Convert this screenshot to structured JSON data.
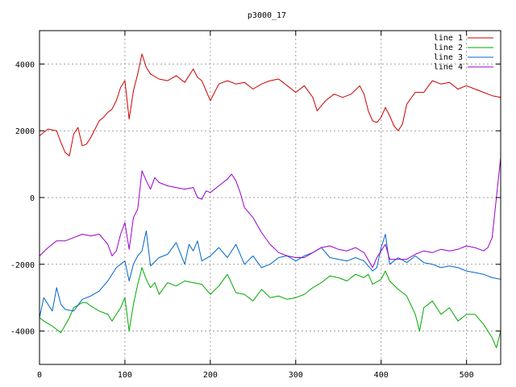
{
  "chart_data": {
    "type": "line",
    "title": "p3000_17",
    "xlabel": "",
    "ylabel": "",
    "xlim": [
      0,
      540
    ],
    "ylim": [
      -5000,
      5000
    ],
    "xticks": [
      0,
      100,
      200,
      300,
      400,
      500
    ],
    "yticks": [
      -4000,
      -2000,
      0,
      2000,
      4000
    ],
    "grid": true,
    "legend_position": "top-right",
    "series": [
      {
        "name": "line 1",
        "color": "#cc0000",
        "points": [
          [
            0,
            1850
          ],
          [
            10,
            2050
          ],
          [
            20,
            2000
          ],
          [
            25,
            1650
          ],
          [
            30,
            1350
          ],
          [
            35,
            1250
          ],
          [
            40,
            1900
          ],
          [
            45,
            2100
          ],
          [
            50,
            1550
          ],
          [
            55,
            1600
          ],
          [
            60,
            1800
          ],
          [
            65,
            2050
          ],
          [
            70,
            2300
          ],
          [
            75,
            2400
          ],
          [
            80,
            2550
          ],
          [
            85,
            2650
          ],
          [
            90,
            2900
          ],
          [
            95,
            3300
          ],
          [
            100,
            3500
          ],
          [
            105,
            2350
          ],
          [
            110,
            3200
          ],
          [
            115,
            3700
          ],
          [
            120,
            4300
          ],
          [
            125,
            3900
          ],
          [
            130,
            3700
          ],
          [
            140,
            3550
          ],
          [
            150,
            3500
          ],
          [
            160,
            3650
          ],
          [
            170,
            3450
          ],
          [
            180,
            3850
          ],
          [
            185,
            3600
          ],
          [
            190,
            3500
          ],
          [
            195,
            3200
          ],
          [
            200,
            2900
          ],
          [
            210,
            3400
          ],
          [
            220,
            3500
          ],
          [
            230,
            3400
          ],
          [
            240,
            3450
          ],
          [
            250,
            3250
          ],
          [
            260,
            3400
          ],
          [
            270,
            3500
          ],
          [
            280,
            3550
          ],
          [
            290,
            3350
          ],
          [
            300,
            3150
          ],
          [
            310,
            3350
          ],
          [
            320,
            3000
          ],
          [
            325,
            2600
          ],
          [
            335,
            2900
          ],
          [
            345,
            3100
          ],
          [
            355,
            3000
          ],
          [
            365,
            3100
          ],
          [
            375,
            3350
          ],
          [
            380,
            3100
          ],
          [
            385,
            2600
          ],
          [
            390,
            2300
          ],
          [
            395,
            2250
          ],
          [
            400,
            2400
          ],
          [
            405,
            2700
          ],
          [
            410,
            2450
          ],
          [
            415,
            2150
          ],
          [
            420,
            2000
          ],
          [
            425,
            2200
          ],
          [
            430,
            2800
          ],
          [
            440,
            3150
          ],
          [
            450,
            3150
          ],
          [
            460,
            3500
          ],
          [
            470,
            3400
          ],
          [
            480,
            3450
          ],
          [
            490,
            3250
          ],
          [
            500,
            3350
          ],
          [
            510,
            3250
          ],
          [
            520,
            3150
          ],
          [
            530,
            3050
          ],
          [
            540,
            3000
          ]
        ]
      },
      {
        "name": "line 2",
        "color": "#00aa00",
        "points": [
          [
            0,
            -3600
          ],
          [
            5,
            -3700
          ],
          [
            15,
            -3850
          ],
          [
            25,
            -4050
          ],
          [
            35,
            -3600
          ],
          [
            40,
            -3300
          ],
          [
            50,
            -3150
          ],
          [
            55,
            -3150
          ],
          [
            60,
            -3250
          ],
          [
            70,
            -3400
          ],
          [
            80,
            -3500
          ],
          [
            85,
            -3700
          ],
          [
            95,
            -3300
          ],
          [
            100,
            -3000
          ],
          [
            105,
            -4000
          ],
          [
            110,
            -3200
          ],
          [
            115,
            -2600
          ],
          [
            120,
            -2100
          ],
          [
            125,
            -2450
          ],
          [
            130,
            -2700
          ],
          [
            135,
            -2550
          ],
          [
            140,
            -2900
          ],
          [
            150,
            -2550
          ],
          [
            160,
            -2650
          ],
          [
            170,
            -2500
          ],
          [
            180,
            -2550
          ],
          [
            190,
            -2600
          ],
          [
            200,
            -2900
          ],
          [
            210,
            -2650
          ],
          [
            220,
            -2300
          ],
          [
            230,
            -2850
          ],
          [
            240,
            -2900
          ],
          [
            250,
            -3100
          ],
          [
            260,
            -2750
          ],
          [
            270,
            -3000
          ],
          [
            280,
            -2950
          ],
          [
            290,
            -3050
          ],
          [
            300,
            -3000
          ],
          [
            310,
            -2900
          ],
          [
            320,
            -2700
          ],
          [
            330,
            -2550
          ],
          [
            340,
            -2350
          ],
          [
            350,
            -2400
          ],
          [
            360,
            -2500
          ],
          [
            370,
            -2300
          ],
          [
            380,
            -2400
          ],
          [
            385,
            -2300
          ],
          [
            390,
            -2600
          ],
          [
            400,
            -2450
          ],
          [
            405,
            -2200
          ],
          [
            410,
            -2500
          ],
          [
            420,
            -2750
          ],
          [
            430,
            -2950
          ],
          [
            440,
            -3500
          ],
          [
            445,
            -4000
          ],
          [
            450,
            -3300
          ],
          [
            460,
            -3100
          ],
          [
            470,
            -3500
          ],
          [
            480,
            -3300
          ],
          [
            490,
            -3700
          ],
          [
            500,
            -3500
          ],
          [
            510,
            -3500
          ],
          [
            520,
            -3800
          ],
          [
            530,
            -4200
          ],
          [
            535,
            -4500
          ],
          [
            540,
            -4000
          ]
        ]
      },
      {
        "name": "line 3",
        "color": "#0066cc",
        "points": [
          [
            0,
            -3600
          ],
          [
            5,
            -3000
          ],
          [
            10,
            -3200
          ],
          [
            15,
            -3400
          ],
          [
            20,
            -2700
          ],
          [
            25,
            -3200
          ],
          [
            30,
            -3350
          ],
          [
            40,
            -3400
          ],
          [
            50,
            -3050
          ],
          [
            60,
            -2950
          ],
          [
            70,
            -2800
          ],
          [
            80,
            -2500
          ],
          [
            90,
            -2100
          ],
          [
            100,
            -1900
          ],
          [
            105,
            -2500
          ],
          [
            110,
            -2000
          ],
          [
            115,
            -1750
          ],
          [
            120,
            -1600
          ],
          [
            125,
            -1000
          ],
          [
            130,
            -2050
          ],
          [
            140,
            -1800
          ],
          [
            150,
            -1700
          ],
          [
            160,
            -1350
          ],
          [
            170,
            -2000
          ],
          [
            175,
            -1400
          ],
          [
            180,
            -1600
          ],
          [
            185,
            -1300
          ],
          [
            190,
            -1900
          ],
          [
            200,
            -1750
          ],
          [
            210,
            -1500
          ],
          [
            220,
            -1800
          ],
          [
            230,
            -1400
          ],
          [
            240,
            -2000
          ],
          [
            250,
            -1750
          ],
          [
            260,
            -2100
          ],
          [
            270,
            -2000
          ],
          [
            280,
            -1800
          ],
          [
            290,
            -1750
          ],
          [
            300,
            -1900
          ],
          [
            310,
            -1750
          ],
          [
            320,
            -1650
          ],
          [
            330,
            -1500
          ],
          [
            340,
            -1800
          ],
          [
            350,
            -1850
          ],
          [
            360,
            -1900
          ],
          [
            370,
            -1800
          ],
          [
            380,
            -1900
          ],
          [
            390,
            -2200
          ],
          [
            395,
            -2100
          ],
          [
            400,
            -1500
          ],
          [
            405,
            -1100
          ],
          [
            410,
            -2000
          ],
          [
            420,
            -1800
          ],
          [
            430,
            -1950
          ],
          [
            440,
            -1750
          ],
          [
            450,
            -1950
          ],
          [
            460,
            -2000
          ],
          [
            470,
            -2100
          ],
          [
            480,
            -2050
          ],
          [
            490,
            -2100
          ],
          [
            500,
            -2200
          ],
          [
            510,
            -2250
          ],
          [
            520,
            -2300
          ],
          [
            530,
            -2400
          ],
          [
            540,
            -2450
          ]
        ]
      },
      {
        "name": "line 4",
        "color": "#9900cc",
        "points": [
          [
            0,
            -1750
          ],
          [
            10,
            -1500
          ],
          [
            20,
            -1300
          ],
          [
            30,
            -1300
          ],
          [
            40,
            -1200
          ],
          [
            50,
            -1100
          ],
          [
            60,
            -1150
          ],
          [
            70,
            -1100
          ],
          [
            80,
            -1400
          ],
          [
            85,
            -1750
          ],
          [
            90,
            -1600
          ],
          [
            95,
            -1100
          ],
          [
            100,
            -750
          ],
          [
            105,
            -1550
          ],
          [
            110,
            -600
          ],
          [
            115,
            -350
          ],
          [
            120,
            800
          ],
          [
            125,
            500
          ],
          [
            130,
            250
          ],
          [
            135,
            600
          ],
          [
            140,
            450
          ],
          [
            150,
            350
          ],
          [
            160,
            300
          ],
          [
            170,
            250
          ],
          [
            180,
            300
          ],
          [
            185,
            0
          ],
          [
            190,
            -50
          ],
          [
            195,
            200
          ],
          [
            200,
            150
          ],
          [
            210,
            350
          ],
          [
            220,
            550
          ],
          [
            225,
            700
          ],
          [
            230,
            500
          ],
          [
            235,
            150
          ],
          [
            240,
            -300
          ],
          [
            250,
            -600
          ],
          [
            260,
            -1050
          ],
          [
            270,
            -1400
          ],
          [
            280,
            -1650
          ],
          [
            290,
            -1750
          ],
          [
            300,
            -1800
          ],
          [
            310,
            -1800
          ],
          [
            320,
            -1650
          ],
          [
            330,
            -1500
          ],
          [
            340,
            -1450
          ],
          [
            350,
            -1550
          ],
          [
            360,
            -1600
          ],
          [
            370,
            -1500
          ],
          [
            380,
            -1650
          ],
          [
            390,
            -2100
          ],
          [
            395,
            -1800
          ],
          [
            400,
            -1600
          ],
          [
            405,
            -1400
          ],
          [
            410,
            -1850
          ],
          [
            420,
            -1850
          ],
          [
            430,
            -1850
          ],
          [
            440,
            -1700
          ],
          [
            450,
            -1600
          ],
          [
            460,
            -1650
          ],
          [
            470,
            -1550
          ],
          [
            480,
            -1600
          ],
          [
            490,
            -1550
          ],
          [
            500,
            -1450
          ],
          [
            510,
            -1500
          ],
          [
            520,
            -1600
          ],
          [
            525,
            -1500
          ],
          [
            530,
            -1200
          ],
          [
            535,
            0
          ],
          [
            540,
            1200
          ]
        ]
      }
    ]
  }
}
